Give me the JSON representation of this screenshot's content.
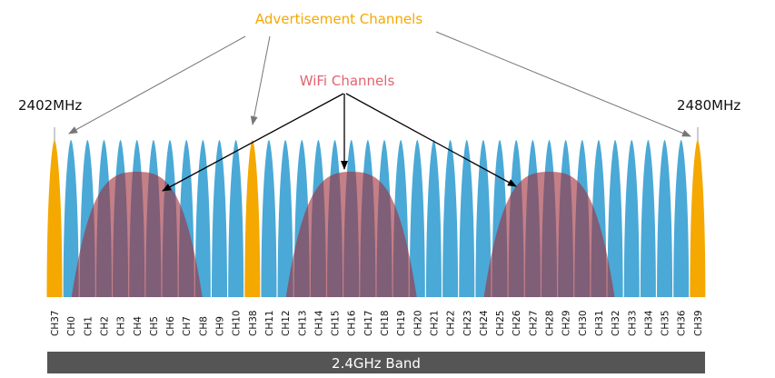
{
  "labels": {
    "advertisement_channels": "Advertisement Channels",
    "wifi_channels": "WiFi Channels",
    "freq_start": "2402MHz",
    "freq_end": "2480MHz",
    "band": "2.4GHz Band"
  },
  "channels": [
    "CH37",
    "CH0",
    "CH1",
    "CH2",
    "CH3",
    "CH4",
    "CH5",
    "CH6",
    "CH7",
    "CH8",
    "CH9",
    "CH10",
    "CH38",
    "CH11",
    "CH12",
    "CH13",
    "CH14",
    "CH15",
    "CH16",
    "CH17",
    "CH18",
    "CH19",
    "CH20",
    "CH21",
    "CH22",
    "CH23",
    "CH24",
    "CH25",
    "CH26",
    "CH27",
    "CH28",
    "CH29",
    "CH30",
    "CH31",
    "CH32",
    "CH33",
    "CH34",
    "CH35",
    "CH36",
    "CH39"
  ],
  "advertisement_channel_names": [
    "CH37",
    "CH38",
    "CH39"
  ],
  "wifi_channel_centers": [
    "CH4",
    "CH16",
    "CH28"
  ],
  "colors": {
    "data_channel": "#4aa9d6",
    "advertisement_channel": "#f5a800",
    "wifi_channel": "#a0303e",
    "band_bar": "#555555",
    "arrow_gray": "#777777",
    "arrow_black": "#000000"
  }
}
